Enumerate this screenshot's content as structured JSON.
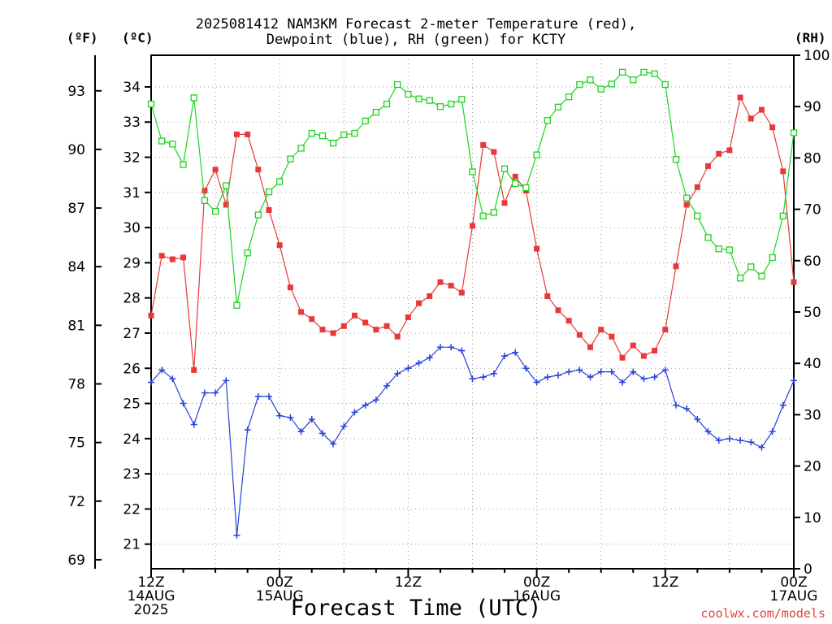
{
  "title": {
    "line1": "2025081412 NAM3KM Forecast 2-meter Temperature (red),",
    "line2": "Dewpoint (blue), RH (green) for KCTY"
  },
  "units": {
    "left_f": "(ºF)",
    "left_c": "(ºC)",
    "right_rh": "(RH)"
  },
  "xlabel": "Forecast Time (UTC)",
  "credit": "coolwx.com/models",
  "colors": {
    "temperature": "#e8393a",
    "dewpoint": "#2641d9",
    "rh": "#1dd41d",
    "axis": "#000000",
    "grid": "#9a9a9a",
    "credit": "#e0433f"
  },
  "chart_data": {
    "type": "line",
    "x_unit": "forecast hour from 2025-08-14 12Z",
    "x_range": [
      0,
      60
    ],
    "x_ticks": [
      {
        "hour": 0,
        "label": [
          "12Z",
          "14AUG",
          "2025"
        ]
      },
      {
        "hour": 12,
        "label": [
          "00Z",
          "15AUG"
        ]
      },
      {
        "hour": 24,
        "label": [
          "12Z"
        ]
      },
      {
        "hour": 36,
        "label": [
          "00Z",
          "16AUG"
        ]
      },
      {
        "hour": 48,
        "label": [
          "12Z"
        ]
      },
      {
        "hour": 60,
        "label": [
          "00Z",
          "17AUG"
        ]
      }
    ],
    "celsius_axis": {
      "range": [
        20.3,
        34.9
      ],
      "ticks": [
        21,
        22,
        23,
        24,
        25,
        26,
        27,
        28,
        29,
        30,
        31,
        32,
        33,
        34
      ]
    },
    "fahrenheit_axis": {
      "ticks": [
        69,
        72,
        75,
        78,
        81,
        84,
        87,
        90,
        93
      ]
    },
    "rh_axis": {
      "range": [
        0,
        100
      ],
      "ticks": [
        0,
        10,
        20,
        30,
        40,
        50,
        60,
        70,
        80,
        90,
        100
      ]
    },
    "grid": true,
    "series": [
      {
        "name": "Temperature",
        "axis": "celsius",
        "marker": "filled-square",
        "x": [
          0,
          1,
          2,
          3,
          4,
          5,
          6,
          7,
          8,
          9,
          10,
          11,
          12,
          13,
          14,
          15,
          16,
          17,
          18,
          19,
          20,
          21,
          22,
          23,
          24,
          25,
          26,
          27,
          28,
          29,
          30,
          31,
          32,
          33,
          34,
          35,
          36,
          37,
          38,
          39,
          40,
          41,
          42,
          43,
          44,
          45,
          46,
          47,
          48,
          49,
          50,
          51,
          52,
          53,
          54,
          55,
          56,
          57,
          58,
          59,
          60
        ],
        "values": [
          27.5,
          29.2,
          29.1,
          29.15,
          25.95,
          31.05,
          31.65,
          30.65,
          32.65,
          32.65,
          31.65,
          30.5,
          29.5,
          28.3,
          27.6,
          27.4,
          27.1,
          27.0,
          27.2,
          27.5,
          27.3,
          27.1,
          27.2,
          26.9,
          27.45,
          27.85,
          28.05,
          28.45,
          28.35,
          28.15,
          30.05,
          32.35,
          32.15,
          30.7,
          31.45,
          31.05,
          29.4,
          28.05,
          27.65,
          27.35,
          26.95,
          26.6,
          27.1,
          26.9,
          26.3,
          26.65,
          26.35,
          26.5,
          27.1,
          28.9,
          30.65,
          31.15,
          31.75,
          32.1,
          32.2,
          33.7,
          33.1,
          33.35,
          32.85,
          31.6,
          28.45
        ]
      },
      {
        "name": "Dewpoint",
        "axis": "celsius",
        "marker": "plus",
        "x": [
          0,
          1,
          2,
          3,
          4,
          5,
          6,
          7,
          8,
          9,
          10,
          11,
          12,
          13,
          14,
          15,
          16,
          17,
          18,
          19,
          20,
          21,
          22,
          23,
          24,
          25,
          26,
          27,
          28,
          29,
          30,
          31,
          32,
          33,
          34,
          35,
          36,
          37,
          38,
          39,
          40,
          41,
          42,
          43,
          44,
          45,
          46,
          47,
          48,
          49,
          50,
          51,
          52,
          53,
          54,
          55,
          56,
          57,
          58,
          59,
          60
        ],
        "values": [
          25.6,
          25.95,
          25.7,
          25.0,
          24.4,
          25.3,
          25.3,
          25.65,
          21.25,
          24.25,
          25.2,
          25.2,
          24.65,
          24.6,
          24.2,
          24.55,
          24.15,
          23.85,
          24.35,
          24.75,
          24.95,
          25.1,
          25.5,
          25.85,
          26.0,
          26.15,
          26.3,
          26.6,
          26.6,
          26.5,
          25.7,
          25.75,
          25.85,
          26.35,
          26.45,
          26.0,
          25.6,
          25.75,
          25.8,
          25.9,
          25.95,
          25.75,
          25.9,
          25.9,
          25.6,
          25.9,
          25.7,
          25.75,
          25.95,
          24.95,
          24.85,
          24.55,
          24.2,
          23.95,
          24.0,
          23.95,
          23.9,
          23.75,
          24.2,
          24.95,
          25.65
        ]
      },
      {
        "name": "RH",
        "axis": "rh",
        "marker": "open-square",
        "x": [
          0,
          1,
          2,
          3,
          4,
          5,
          6,
          7,
          8,
          9,
          10,
          11,
          12,
          13,
          14,
          15,
          16,
          17,
          18,
          19,
          20,
          21,
          22,
          23,
          24,
          25,
          26,
          27,
          28,
          29,
          30,
          31,
          32,
          33,
          34,
          35,
          36,
          37,
          38,
          39,
          40,
          41,
          42,
          43,
          44,
          45,
          46,
          47,
          48,
          49,
          50,
          51,
          52,
          53,
          54,
          55,
          56,
          57,
          58,
          59,
          60
        ],
        "values": [
          90.5,
          83.3,
          82.7,
          78.7,
          91.7,
          71.7,
          69.6,
          74.6,
          51.3,
          61.5,
          68.9,
          73.4,
          75.4,
          79.8,
          81.9,
          84.8,
          84.3,
          82.9,
          84.5,
          84.8,
          87.2,
          88.9,
          90.5,
          94.3,
          92.4,
          91.5,
          91.2,
          90.0,
          90.5,
          91.4,
          77.3,
          68.7,
          69.4,
          77.9,
          75.0,
          74.2,
          80.6,
          87.3,
          89.9,
          91.9,
          94.3,
          95.2,
          93.4,
          94.4,
          96.7,
          95.2,
          96.7,
          96.4,
          94.3,
          79.7,
          72.2,
          68.7,
          64.5,
          62.3,
          62.1,
          56.6,
          58.8,
          57.0,
          60.6,
          68.7,
          84.9
        ]
      }
    ]
  }
}
